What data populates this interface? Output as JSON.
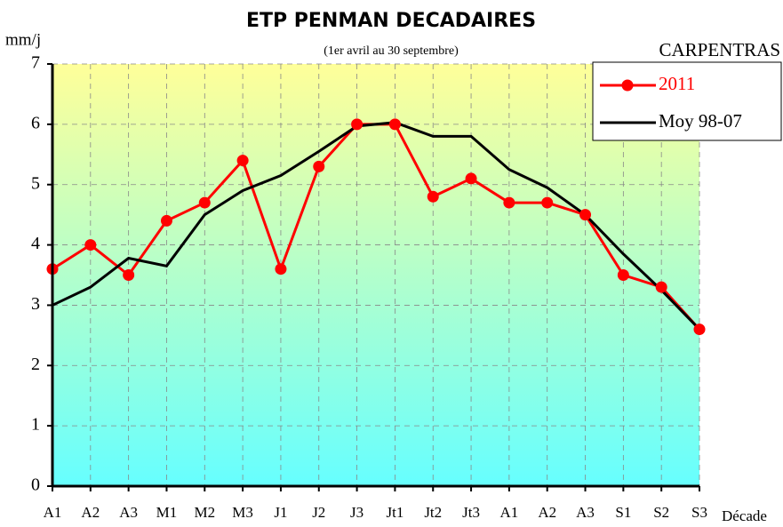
{
  "chart_data": {
    "type": "line",
    "title": "ETP PENMAN DECADAIRES",
    "subtitle": "(1er avril au 30 septembre)",
    "y_label": "mm/j",
    "x_label": "Décade",
    "annotation": "CARPENTRAS",
    "categories": [
      "A1",
      "A2",
      "A3",
      "M1",
      "M2",
      "M3",
      "J1",
      "J2",
      "J3",
      "Jt1",
      "Jt2",
      "Jt3",
      "A1",
      "A2",
      "A3",
      "S1",
      "S2",
      "S3"
    ],
    "series": [
      {
        "name": "2011",
        "color": "#ff0000",
        "values": [
          3.6,
          4.0,
          3.5,
          4.4,
          4.7,
          5.4,
          3.6,
          5.3,
          6.0,
          6.0,
          4.8,
          5.1,
          4.7,
          4.7,
          4.5,
          3.5,
          3.3,
          2.6
        ]
      },
      {
        "name": "Moy 98-07",
        "color": "#000000",
        "values": [
          3.0,
          3.3,
          3.78,
          3.65,
          4.5,
          4.9,
          5.15,
          5.55,
          5.97,
          6.03,
          5.8,
          5.8,
          5.25,
          4.95,
          4.5,
          3.85,
          3.25,
          2.6
        ]
      }
    ],
    "ylim": [
      0,
      7
    ],
    "yticks": [
      0,
      1,
      2,
      3,
      4,
      5,
      6,
      7
    ],
    "grid": true,
    "legend": "top-right"
  }
}
